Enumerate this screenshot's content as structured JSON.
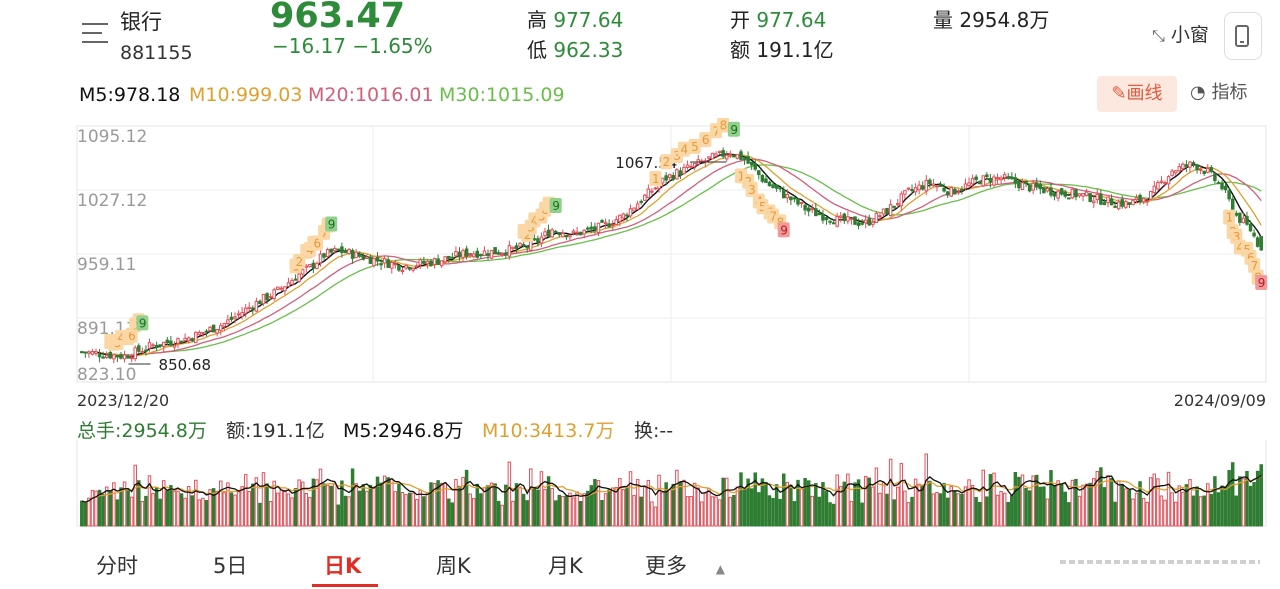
{
  "header": {
    "name": "银行",
    "code": "881155",
    "price": "963.47",
    "change": "−16.17  −1.65%",
    "high_label": "高",
    "high_value": "977.64",
    "low_label": "低",
    "low_value": "962.33",
    "open_label": "开",
    "open_value": "977.64",
    "amount_label": "额",
    "amount_value": "191.1亿",
    "volume_label": "量",
    "volume_value": "2954.8万",
    "mini_window": "小窗"
  },
  "ma_bar": {
    "m5": "M5:978.18",
    "m10": "M10:999.03",
    "m20": "M20:1016.01",
    "m30": "M30:1015.09",
    "draw_label": "画线",
    "indicator_label": "指标"
  },
  "vol_bar": {
    "total": "总手:2954.8万",
    "amount": "额:191.1亿",
    "m5": "M5:2946.8万",
    "m10": "M10:3413.7万",
    "turnover": "换:--"
  },
  "tabs": [
    "分时",
    "5日",
    "日K",
    "周K",
    "月K",
    "更多"
  ],
  "colors": {
    "up": "#e0505a",
    "down": "#2e7d32",
    "ma5": "#111111",
    "ma10": "#e0a030",
    "ma20": "#d0607a",
    "ma30": "#6abf4b",
    "accent": "#e02e24"
  },
  "chart_data": {
    "type": "candlestick",
    "x_start": "2023/12/20",
    "x_end": "2024/09/09",
    "y_ticks": [
      "1095.12",
      "1027.12",
      "959.11",
      "891.11",
      "823.10"
    ],
    "ylim": [
      823.1,
      1095.12
    ],
    "annotations": {
      "max_label": "1067.54",
      "min_label": "850.68"
    },
    "trend_keypoints": [
      [
        0,
        855
      ],
      [
        8,
        852
      ],
      [
        12,
        850.7
      ],
      [
        20,
        862
      ],
      [
        30,
        870
      ],
      [
        40,
        885
      ],
      [
        48,
        905
      ],
      [
        55,
        920
      ],
      [
        60,
        935
      ],
      [
        64,
        945
      ],
      [
        68,
        958
      ],
      [
        72,
        963
      ],
      [
        80,
        955
      ],
      [
        90,
        946
      ],
      [
        100,
        952
      ],
      [
        108,
        960
      ],
      [
        118,
        962
      ],
      [
        126,
        968
      ],
      [
        132,
        985
      ],
      [
        138,
        980
      ],
      [
        146,
        988
      ],
      [
        152,
        1000
      ],
      [
        158,
        1020
      ],
      [
        164,
        1040
      ],
      [
        170,
        1050
      ],
      [
        176,
        1060
      ],
      [
        182,
        1067.5
      ],
      [
        186,
        1060
      ],
      [
        192,
        1035
      ],
      [
        198,
        1020
      ],
      [
        204,
        1005
      ],
      [
        212,
        995
      ],
      [
        220,
        992
      ],
      [
        226,
        1005
      ],
      [
        232,
        1025
      ],
      [
        238,
        1035
      ],
      [
        244,
        1025
      ],
      [
        252,
        1038
      ],
      [
        258,
        1040
      ],
      [
        266,
        1030
      ],
      [
        272,
        1026
      ],
      [
        280,
        1022
      ],
      [
        288,
        1015
      ],
      [
        294,
        1012
      ],
      [
        300,
        1022
      ],
      [
        306,
        1048
      ],
      [
        312,
        1055
      ],
      [
        316,
        1046
      ],
      [
        320,
        1030
      ],
      [
        324,
        1000
      ],
      [
        328,
        985
      ],
      [
        331,
        963.5
      ]
    ],
    "td_marks_note": "sequential count markers 1-9"
  }
}
